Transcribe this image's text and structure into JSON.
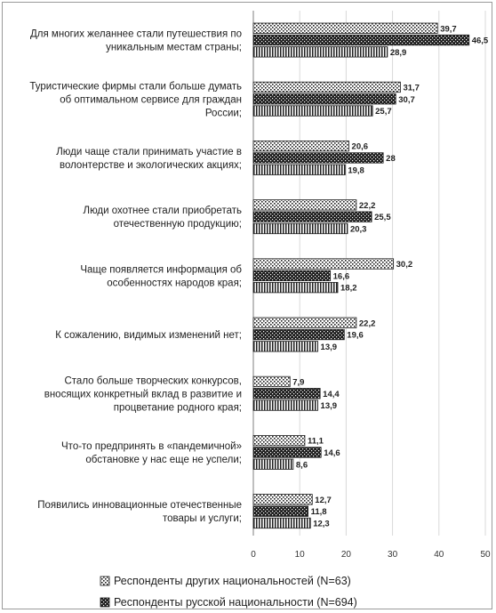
{
  "chart_data": {
    "type": "bar",
    "orientation": "horizontal",
    "categories": [
      [
        "Для многих желаннее стали путешествия по",
        "уникальным местам страны;"
      ],
      [
        "Туристические фирмы стали больше думать",
        "об оптимальном сервисе для граждан",
        "России;"
      ],
      [
        "Люди чаще стали принимать участие в",
        "волонтерстве и экологических акциях;"
      ],
      [
        "Люди охотнее стали приобретать",
        "отечественную продукцию;"
      ],
      [
        "Чаще появляется информация об",
        "особенностях народов края;"
      ],
      [
        "К сожалению, видимых изменений нет;"
      ],
      [
        "Стало больше творческих конкурсов,",
        "вносящих конкретный вклад в развитие и",
        "процветание родного края;"
      ],
      [
        "Что-то предпринять в «пандемичной»",
        "обстановке у нас еще не успели;"
      ],
      [
        "Появились инновационные отечественные",
        "товары и услуги;"
      ]
    ],
    "series": [
      {
        "name": "Респонденты других национальностей (N=63)",
        "pattern": "dots",
        "values": [
          39.7,
          31.7,
          20.6,
          22.2,
          30.2,
          22.2,
          7.9,
          11.1,
          12.7
        ],
        "labels": [
          "39,7",
          "31,7",
          "20,6",
          "22,2",
          "30,2",
          "22,2",
          "7,9",
          "11,1",
          "12,7"
        ]
      },
      {
        "name": "Респонденты русской национальности (N=694)",
        "pattern": "dark-checker",
        "values": [
          46.5,
          30.7,
          28,
          25.5,
          16.6,
          19.6,
          14.4,
          14.6,
          11.8
        ],
        "labels": [
          "46,5",
          "30,7",
          "28",
          "25,5",
          "16,6",
          "19,6",
          "14,4",
          "14,6",
          "11,8"
        ]
      },
      {
        "name": "",
        "pattern": "vertical-lines",
        "values": [
          28.9,
          25.7,
          19.8,
          20.3,
          18.2,
          13.9,
          13.9,
          8.6,
          12.3
        ],
        "labels": [
          "28,9",
          "25,7",
          "19,8",
          "20,3",
          "18,2",
          "13,9",
          "13,9",
          "8,6",
          "12,3"
        ]
      }
    ],
    "xlim": [
      0,
      50
    ],
    "xticks": [
      "0",
      "10",
      "20",
      "30",
      "40",
      "50"
    ],
    "grid": true,
    "legend_position": "bottom",
    "colors": {
      "bar_edge": "#1e1e1e",
      "grid": "#d9d9d9",
      "text": "#1e1e1e",
      "axis": "#7f7f7f"
    }
  }
}
